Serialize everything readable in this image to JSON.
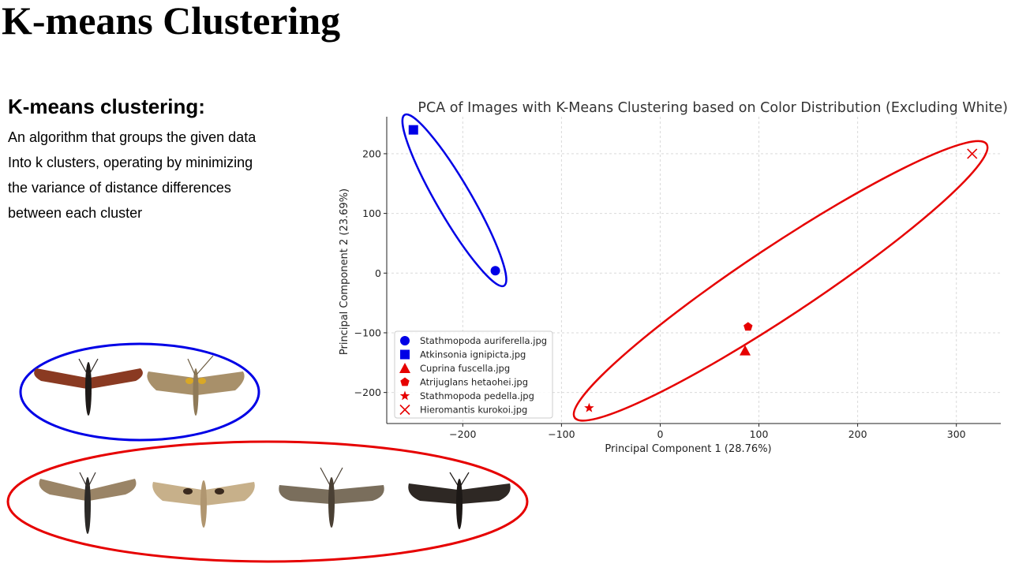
{
  "slide": {
    "title": "K-means Clustering",
    "heading": "K-means clustering:",
    "description_lines": [
      "An algorithm that groups the given data",
      "Into k clusters, operating by minimizing",
      "the variance of distance differences",
      "between each cluster"
    ]
  },
  "cluster_colors": {
    "cluster_1": "#0000e6",
    "cluster_2": "#e60000"
  },
  "moth_groups": [
    {
      "cluster": "cluster_1",
      "moths": [
        "Stathmopoda auriferella.jpg",
        "Atkinsonia ignipicta.jpg"
      ]
    },
    {
      "cluster": "cluster_2",
      "moths": [
        "Cuprina fuscella.jpg",
        "Atrijuglans hetaohei.jpg",
        "Stathmopoda pedella.jpg",
        "Hieromantis kurokoi.jpg"
      ]
    }
  ],
  "chart_data": {
    "type": "scatter",
    "title": "PCA of Images with K-Means Clustering based on Color Distribution (Excluding White)",
    "xlabel": "Principal Component 1 (28.76%)",
    "ylabel": "Principal Component 2 (23.69%)",
    "xlim": [
      -277,
      345
    ],
    "ylim": [
      -252,
      262
    ],
    "xticks": [
      -200,
      -100,
      0,
      100,
      200,
      300
    ],
    "yticks": [
      -200,
      -100,
      0,
      100,
      200
    ],
    "xtick_labels": [
      "−200",
      "−100",
      "0",
      "100",
      "200",
      "300"
    ],
    "ytick_labels": [
      "−200",
      "−100",
      "0",
      "100",
      "200"
    ],
    "grid": true,
    "legend_position": "lower-left",
    "series": [
      {
        "name": "Stathmopoda auriferella.jpg",
        "marker": "circle",
        "cluster": "cluster_1",
        "color": "#0000e6",
        "x": -167,
        "y": 4
      },
      {
        "name": "Atkinsonia ignipicta.jpg",
        "marker": "square",
        "cluster": "cluster_1",
        "color": "#0000e6",
        "x": -250,
        "y": 240
      },
      {
        "name": "Cuprina fuscella.jpg",
        "marker": "triangle",
        "cluster": "cluster_2",
        "color": "#e60000",
        "x": 86,
        "y": -130
      },
      {
        "name": "Atrijuglans hetaohei.jpg",
        "marker": "pentagon",
        "cluster": "cluster_2",
        "color": "#e60000",
        "x": 89,
        "y": -90
      },
      {
        "name": "Stathmopoda pedella.jpg",
        "marker": "star",
        "cluster": "cluster_2",
        "color": "#e60000",
        "x": -72,
        "y": -226
      },
      {
        "name": "Hieromantis kurokoi.jpg",
        "marker": "x",
        "cluster": "cluster_2",
        "color": "#e60000",
        "x": 316,
        "y": 200
      }
    ],
    "cluster_outlines": [
      {
        "cluster": "cluster_1",
        "color": "#0000e6",
        "members": [
          "Stathmopoda auriferella.jpg",
          "Atkinsonia ignipicta.jpg"
        ]
      },
      {
        "cluster": "cluster_2",
        "color": "#e60000",
        "members": [
          "Cuprina fuscella.jpg",
          "Atrijuglans hetaohei.jpg",
          "Stathmopoda pedella.jpg",
          "Hieromantis kurokoi.jpg"
        ]
      }
    ]
  }
}
